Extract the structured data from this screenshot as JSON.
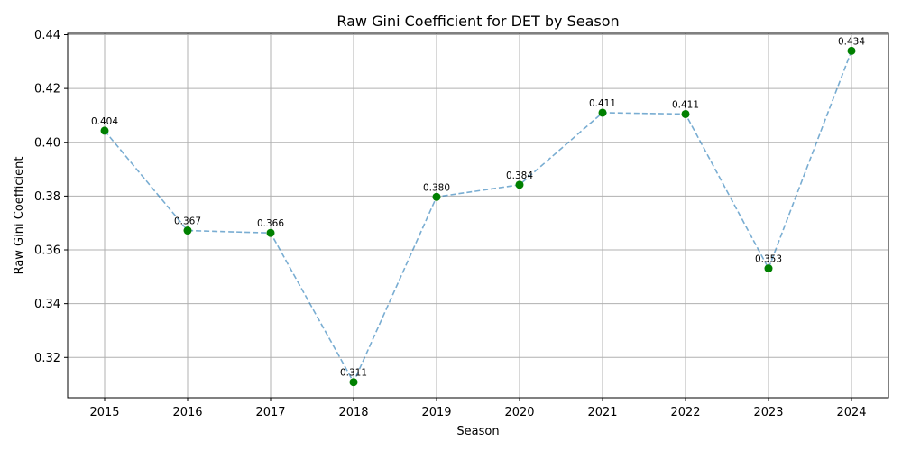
{
  "chart_data": {
    "type": "line",
    "title": "Raw Gini Coefficient for DET by Season",
    "xlabel": "Season",
    "ylabel": "Raw Gini Coefficient",
    "x": [
      "2015",
      "2016",
      "2017",
      "2018",
      "2019",
      "2020",
      "2021",
      "2022",
      "2023",
      "2024"
    ],
    "values": [
      0.4043,
      0.3672,
      0.3663,
      0.3108,
      0.3797,
      0.3842,
      0.411,
      0.4105,
      0.3531,
      0.434
    ],
    "data_labels": [
      "0.404",
      "0.367",
      "0.366",
      "0.311",
      "0.380",
      "0.384",
      "0.411",
      "0.411",
      "0.353",
      "0.434"
    ],
    "ylim": [
      0.305,
      0.4405
    ],
    "yticks": [
      0.32,
      0.34,
      0.36,
      0.38,
      0.4,
      0.42,
      0.44
    ],
    "ytick_labels": [
      "0.32",
      "0.34",
      "0.36",
      "0.38",
      "0.40",
      "0.42",
      "0.44"
    ],
    "grid": true,
    "line_color": "#1f77b4",
    "marker_color": "#008000"
  }
}
